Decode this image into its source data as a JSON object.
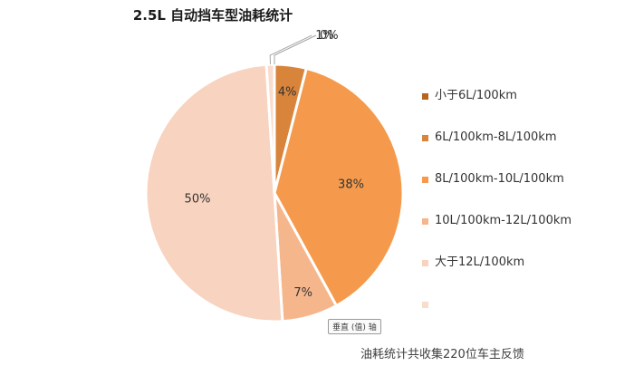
{
  "chart_data": {
    "type": "pie",
    "title": "2.5L 自动挡车型油耗统计",
    "categories": [
      "小于6L/100km",
      "6L/100km-8L/100km",
      "8L/100km-10L/100km",
      "10L/100km-12L/100km",
      "大于12L/100km",
      ""
    ],
    "values": [
      0,
      4,
      38,
      7,
      50,
      1
    ],
    "value_labels": [
      "0%",
      "4%",
      "38%",
      "7%",
      "50%",
      "1%"
    ],
    "colors": [
      "#b5651d",
      "#d9843b",
      "#f59a4c",
      "#f6b68c",
      "#f8d3bf",
      "#f9dccc"
    ],
    "legend_position": "right"
  },
  "axis_tag": "垂直 (值) 轴",
  "footnote": "油耗统计共收集220位车主反馈"
}
